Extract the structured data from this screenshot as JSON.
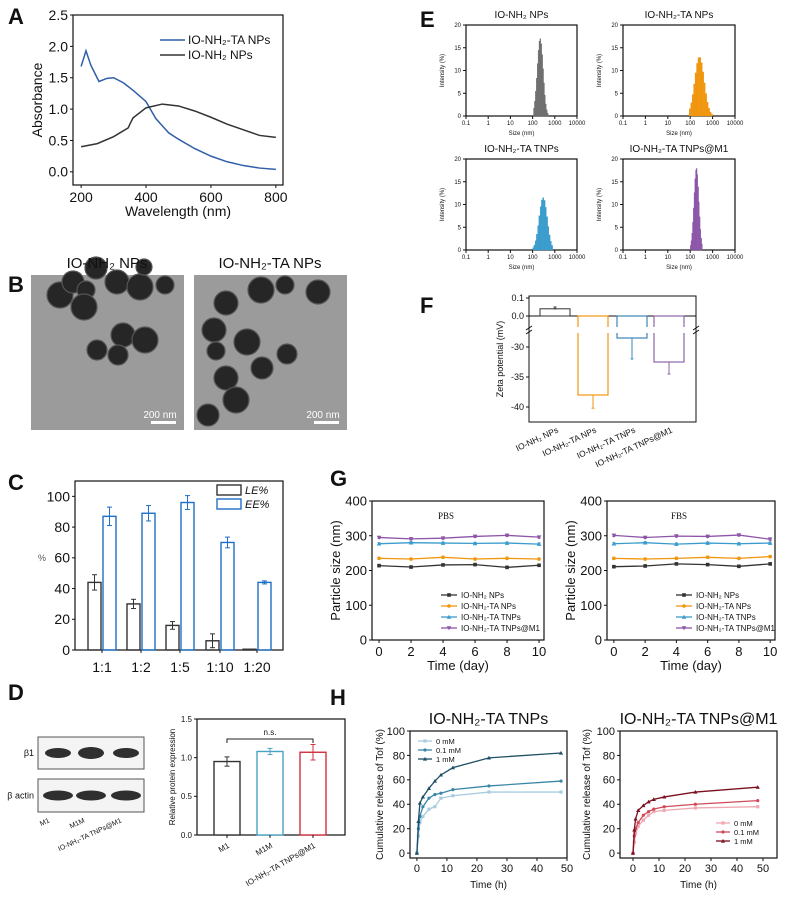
{
  "figure": {
    "panel_letters": [
      "A",
      "B",
      "C",
      "D",
      "E",
      "F",
      "G",
      "H"
    ]
  },
  "panel_b": {
    "images": [
      {
        "title": "IO-NH₂ NPs",
        "scale_bar": "200 nm"
      },
      {
        "title": "IO-NH₂-TA NPs",
        "scale_bar": "200 nm"
      }
    ]
  },
  "panel_d_blot": {
    "rows": [
      "β1",
      "β actin"
    ],
    "lanes": [
      "M1",
      "M1M",
      "IO-NH₂-TA TNPs@M1"
    ]
  },
  "chart_data": [
    {
      "type": "line",
      "xlabel": "Wavelength (nm)",
      "ylabel": "Absorbance",
      "xlim": [
        175,
        822
      ],
      "ylim": [
        -0.21,
        2.5
      ],
      "xticks": [
        "200",
        "400",
        "600",
        "800"
      ],
      "yticks": [
        "0.0",
        "0.5",
        "1.0",
        "1.5",
        "2.0",
        "2.5"
      ],
      "legend": "top-right",
      "series": [
        {
          "name": "IO-NH₂-TA NPs",
          "color": "#2f5fa8",
          "x": [
            200,
            215,
            230,
            255,
            280,
            300,
            330,
            360,
            400,
            430,
            470,
            500,
            550,
            600,
            650,
            700,
            750,
            800
          ],
          "y": [
            1.68,
            1.93,
            1.7,
            1.44,
            1.49,
            1.5,
            1.42,
            1.3,
            1.12,
            0.85,
            0.62,
            0.52,
            0.37,
            0.25,
            0.16,
            0.1,
            0.06,
            0.04
          ]
        },
        {
          "name": "IO-NH₂ NPs",
          "color": "#333333",
          "x": [
            200,
            250,
            300,
            345,
            352,
            360,
            400,
            450,
            500,
            550,
            600,
            650,
            700,
            750,
            800
          ],
          "y": [
            0.4,
            0.45,
            0.56,
            0.7,
            0.78,
            0.86,
            1.02,
            1.08,
            1.05,
            0.97,
            0.87,
            0.76,
            0.67,
            0.58,
            0.55
          ]
        }
      ]
    },
    {
      "type": "bar",
      "xlabel": "",
      "ylabel": "%",
      "categories": [
        "1:1",
        "1:2",
        "1:5",
        "1:10",
        "1:20"
      ],
      "ylim": [
        0,
        110
      ],
      "yticks": [
        "0",
        "20",
        "40",
        "60",
        "80",
        "100"
      ],
      "legend": "top-right",
      "series": [
        {
          "name": "LE%",
          "color": "#333333",
          "values": [
            44,
            30,
            16,
            6,
            0.5
          ],
          "errors": [
            5,
            3,
            2.5,
            4.5,
            0
          ]
        },
        {
          "name": "EE%",
          "color": "#1f6fc8",
          "values": [
            87,
            89,
            96,
            70,
            44
          ],
          "errors": [
            6,
            5,
            4.5,
            3.5,
            1
          ]
        }
      ]
    },
    {
      "type": "bar",
      "ylabel": "Relative protein expression",
      "categories": [
        "M1",
        "M1M",
        "IO-NH₂-TA TNPs@M1"
      ],
      "values": [
        0.95,
        1.08,
        1.07
      ],
      "errors": [
        0.06,
        0.04,
        0.1
      ],
      "colors": [
        "#333333",
        "#4aa3c4",
        "#d0303f"
      ],
      "ylim": [
        0,
        1.5
      ],
      "yticks": [
        "0.0",
        "0.5",
        "1.0",
        "1.5"
      ],
      "annotation": "n.s."
    },
    {
      "type": "histogram",
      "title": "IO-NH₂ NPs",
      "xlabel": "Size (nm)",
      "ylabel": "Intensity (%)",
      "xscale": "log",
      "xlim": [
        0.1,
        10000
      ],
      "xticks": [
        "0.1",
        "1",
        "10",
        "100",
        "1000",
        "10000"
      ],
      "ylim": [
        0,
        20
      ],
      "yticks": [
        "0",
        "5",
        "10",
        "15",
        "20"
      ],
      "color": "#6e6e6e",
      "peak_size_nm": 220,
      "peak_intensity": 17,
      "size_range_nm": [
        110,
        500
      ]
    },
    {
      "type": "histogram",
      "title": "IO-NH₂-TA NPs",
      "xlabel": "Size (nm)",
      "ylabel": "Intensity (%)",
      "xscale": "log",
      "xlim": [
        0.1,
        10000
      ],
      "xticks": [
        "0.1",
        "1",
        "10",
        "100",
        "1000",
        "10000"
      ],
      "ylim": [
        0,
        20
      ],
      "yticks": [
        "0",
        "5",
        "10",
        "15",
        "20"
      ],
      "color": "#f0960f",
      "peak_size_nm": 260,
      "peak_intensity": 13,
      "size_range_nm": [
        90,
        1000
      ]
    },
    {
      "type": "histogram",
      "title": "IO-NH₂-TA TNPs",
      "xlabel": "Size (nm)",
      "ylabel": "Intensity (%)",
      "xscale": "log",
      "xlim": [
        0.1,
        10000
      ],
      "xticks": [
        "0.1",
        "1",
        "10",
        "100",
        "1000",
        "10000"
      ],
      "ylim": [
        0,
        20
      ],
      "yticks": [
        "0",
        "5",
        "10",
        "15",
        "20"
      ],
      "color": "#3a9ccc",
      "peak_size_nm": 300,
      "peak_intensity": 11.5,
      "size_range_nm": [
        100,
        800
      ]
    },
    {
      "type": "histogram",
      "title": "IO-NH₂-TA TNPs@M1",
      "xlabel": "Size (nm)",
      "ylabel": "Intensity (%)",
      "xscale": "log",
      "xlim": [
        0.1,
        10000
      ],
      "xticks": [
        "0.1",
        "1",
        "10",
        "100",
        "1000",
        "10000"
      ],
      "ylim": [
        0,
        20
      ],
      "yticks": [
        "0",
        "5",
        "10",
        "15",
        "20"
      ],
      "color": "#8c55a8",
      "peak_size_nm": 190,
      "peak_intensity": 18,
      "size_range_nm": [
        100,
        350
      ]
    },
    {
      "type": "bar",
      "ylabel": "Zeta potential (mV)",
      "y_axis_break": true,
      "categories": [
        "IO-NH₂ NPs",
        "IO-NH₂-TA NPs",
        "IO-NH₂-TA TNPs",
        "IO-NH₂-TA TNPs@M1"
      ],
      "values": [
        0.04,
        -38,
        -28.5,
        -32.5
      ],
      "errors": [
        0.01,
        2.2,
        3.5,
        2
      ],
      "colors": [
        "#333333",
        "#f0960f",
        "#3a86b8",
        "#8c65a8"
      ],
      "ylim_upper": [
        0,
        0.1
      ],
      "ylim_lower": [
        -42.5,
        -27.7
      ],
      "yticks": [
        "0.1",
        "0.0",
        "-30",
        "-35",
        "-40"
      ]
    },
    {
      "type": "line",
      "title": "PBS",
      "xlabel": "Time (day)",
      "ylabel": "Particle size (nm)",
      "xlim": [
        -0.44,
        10.31
      ],
      "ylim": [
        0,
        400
      ],
      "xticks": [
        "0",
        "2",
        "4",
        "6",
        "8",
        "10"
      ],
      "yticks": [
        "0",
        "100",
        "200",
        "300",
        "400"
      ],
      "legend": "bottom-right",
      "x": [
        0,
        2,
        4,
        6,
        8,
        10
      ],
      "series": [
        {
          "name": "IO-NH₂ NPs",
          "color": "#333333",
          "marker": "square",
          "y": [
            214,
            210,
            216,
            217,
            209,
            215
          ]
        },
        {
          "name": "IO-NH₂-TA NPs",
          "color": "#f0960f",
          "marker": "circle",
          "y": [
            235,
            233,
            238,
            233,
            235,
            233
          ]
        },
        {
          "name": "IO-NH₂-TA TNPs",
          "color": "#3a9ccc",
          "marker": "triangle",
          "y": [
            277,
            280,
            279,
            278,
            279,
            276
          ]
        },
        {
          "name": "IO-NH₂-TA TNPs@M1",
          "color": "#8c55a8",
          "marker": "triangle-down",
          "y": [
            295,
            291,
            293,
            298,
            301,
            296
          ]
        }
      ]
    },
    {
      "type": "line",
      "title": "FBS",
      "xlabel": "Time (day)",
      "ylabel": "Particle size (nm)",
      "xlim": [
        -0.44,
        10.31
      ],
      "ylim": [
        0,
        400
      ],
      "xticks": [
        "0",
        "2",
        "4",
        "6",
        "8",
        "10"
      ],
      "yticks": [
        "0",
        "100",
        "200",
        "300",
        "400"
      ],
      "legend": "bottom-right",
      "x": [
        0,
        2,
        4,
        6,
        8,
        10
      ],
      "series": [
        {
          "name": "IO-NH₂ NPs",
          "color": "#333333",
          "marker": "square",
          "y": [
            211,
            213,
            219,
            217,
            212,
            219
          ]
        },
        {
          "name": "IO-NH₂-TA NPs",
          "color": "#f0960f",
          "marker": "circle",
          "y": [
            235,
            233,
            235,
            238,
            235,
            240
          ]
        },
        {
          "name": "IO-NH₂-TA TNPs",
          "color": "#3a9ccc",
          "marker": "triangle",
          "y": [
            277,
            280,
            276,
            279,
            277,
            279
          ]
        },
        {
          "name": "IO-NH₂-TA TNPs@M1",
          "color": "#8c55a8",
          "marker": "triangle-down",
          "y": [
            301,
            295,
            299,
            298,
            302,
            290
          ]
        }
      ]
    },
    {
      "type": "line",
      "title": "IO-NH₂-TA TNPs",
      "xlabel": "Time (h)",
      "ylabel": "Cumulative release of Tof (%)",
      "xlim": [
        -2.3,
        50
      ],
      "ylim": [
        -4,
        100
      ],
      "xticks": [
        "0",
        "10",
        "20",
        "30",
        "40",
        "50"
      ],
      "yticks": [
        "0",
        "20",
        "40",
        "60",
        "80",
        "100"
      ],
      "legend": "top-left",
      "x": [
        0,
        0.5,
        1,
        2,
        4,
        6,
        8,
        12,
        24,
        48
      ],
      "series": [
        {
          "name": "0 mM",
          "color": "#a8cce0",
          "y": [
            0,
            14,
            25,
            30,
            36,
            38,
            45,
            47,
            50,
            50
          ]
        },
        {
          "name": "0.1 mM",
          "color": "#3a86a8",
          "y": [
            0,
            20,
            30,
            38,
            45,
            48,
            49,
            52,
            55,
            59
          ]
        },
        {
          "name": "1 mM",
          "color": "#1f4f66",
          "y": [
            0,
            26,
            41,
            46,
            53,
            59,
            64,
            70,
            78,
            82
          ]
        }
      ]
    },
    {
      "type": "line",
      "title": "IO-NH₂-TA TNPs@M1",
      "xlabel": "Time (h)",
      "ylabel": "Cumulative release of Tof (%)",
      "xlim": [
        -5,
        55.4
      ],
      "ylim": [
        -4,
        100
      ],
      "xticks": [
        "0",
        "10",
        "20",
        "30",
        "40",
        "50"
      ],
      "yticks": [
        "0",
        "20",
        "40",
        "60",
        "80",
        "100"
      ],
      "legend": "bottom-right",
      "x": [
        0,
        0.5,
        1,
        2,
        4,
        6,
        8,
        12,
        24,
        48
      ],
      "series": [
        {
          "name": "0 mM",
          "color": "#f0a8b0",
          "y": [
            0,
            9,
            16,
            22,
            27,
            31,
            34,
            35,
            37,
            38
          ]
        },
        {
          "name": "0.1 mM",
          "color": "#d04a5a",
          "y": [
            0,
            14,
            20,
            25,
            31,
            34,
            36,
            38,
            40,
            43
          ]
        },
        {
          "name": "1 mM",
          "color": "#7a1020",
          "y": [
            0,
            19,
            28,
            35,
            39,
            42,
            44,
            46,
            50,
            54
          ]
        }
      ]
    }
  ]
}
